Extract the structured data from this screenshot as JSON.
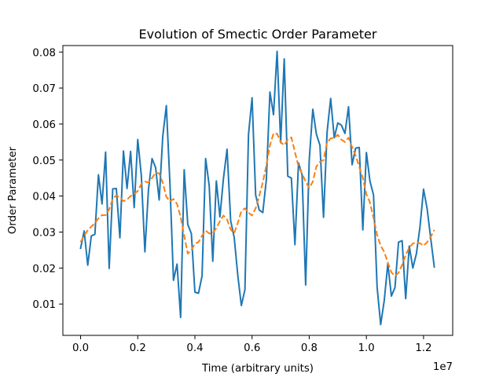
{
  "chart_data": {
    "type": "line",
    "title": "Evolution of Smectic Order Parameter",
    "xlabel": "Time (arbitrary units)",
    "ylabel": "Order Parameter",
    "x_offset_label": "1e7",
    "xlim": [
      -0.062,
      1.302
    ],
    "ylim": [
      0.0013,
      0.0818
    ],
    "xticks": [
      0.0,
      0.2,
      0.4,
      0.6,
      0.8,
      1.0,
      1.2
    ],
    "xtick_labels": [
      "0.0",
      "0.2",
      "0.4",
      "0.6",
      "0.8",
      "1.0",
      "1.2"
    ],
    "yticks": [
      0.01,
      0.02,
      0.03,
      0.04,
      0.05,
      0.06,
      0.07,
      0.08
    ],
    "ytick_labels": [
      "0.01",
      "0.02",
      "0.03",
      "0.04",
      "0.05",
      "0.06",
      "0.07",
      "0.08"
    ],
    "grid": false,
    "legend": "none",
    "series": [
      {
        "style": "solid",
        "color": "#1f77b4",
        "x": [
          0.0,
          0.0125,
          0.025,
          0.0375,
          0.05,
          0.0625,
          0.075,
          0.0875,
          0.1,
          0.1125,
          0.125,
          0.1375,
          0.15,
          0.1625,
          0.175,
          0.1875,
          0.2,
          0.2125,
          0.225,
          0.2375,
          0.25,
          0.2625,
          0.275,
          0.2875,
          0.3,
          0.3125,
          0.325,
          0.3375,
          0.35,
          0.3625,
          0.375,
          0.3875,
          0.4,
          0.4125,
          0.425,
          0.4375,
          0.45,
          0.4625,
          0.475,
          0.4875,
          0.5,
          0.5125,
          0.525,
          0.5375,
          0.55,
          0.5625,
          0.575,
          0.5875,
          0.6,
          0.6125,
          0.625,
          0.6375,
          0.65,
          0.6625,
          0.675,
          0.6875,
          0.7,
          0.7125,
          0.725,
          0.7375,
          0.75,
          0.7625,
          0.775,
          0.7875,
          0.8,
          0.8125,
          0.825,
          0.8375,
          0.85,
          0.8625,
          0.875,
          0.8875,
          0.9,
          0.9125,
          0.925,
          0.9375,
          0.95,
          0.9625,
          0.975,
          0.9875,
          1.0,
          1.0125,
          1.025,
          1.0375,
          1.05,
          1.0625,
          1.075,
          1.0875,
          1.1,
          1.1125,
          1.125,
          1.1375,
          1.15,
          1.1625,
          1.175,
          1.1875,
          1.2,
          1.2125,
          1.225,
          1.2375
        ],
        "y": [
          0.0255,
          0.0303,
          0.0208,
          0.0289,
          0.0294,
          0.0459,
          0.0378,
          0.0522,
          0.0199,
          0.042,
          0.0421,
          0.0284,
          0.0525,
          0.0421,
          0.0524,
          0.0368,
          0.0557,
          0.0457,
          0.0245,
          0.0418,
          0.0504,
          0.0479,
          0.0389,
          0.0566,
          0.0651,
          0.0437,
          0.0166,
          0.0211,
          0.0063,
          0.0473,
          0.0321,
          0.0296,
          0.0133,
          0.013,
          0.0178,
          0.0504,
          0.0429,
          0.0219,
          0.0442,
          0.0342,
          0.045,
          0.053,
          0.0332,
          0.0285,
          0.018,
          0.0096,
          0.014,
          0.0571,
          0.0673,
          0.0403,
          0.0361,
          0.0354,
          0.0446,
          0.0689,
          0.0626,
          0.0802,
          0.0548,
          0.0781,
          0.0455,
          0.045,
          0.0265,
          0.0492,
          0.0459,
          0.0153,
          0.05,
          0.0641,
          0.0572,
          0.0541,
          0.0341,
          0.0578,
          0.0671,
          0.0562,
          0.0603,
          0.0597,
          0.0574,
          0.0648,
          0.0487,
          0.0533,
          0.0535,
          0.0306,
          0.0521,
          0.0441,
          0.0403,
          0.0147,
          0.0043,
          0.011,
          0.0212,
          0.0122,
          0.0146,
          0.0272,
          0.0276,
          0.0115,
          0.0261,
          0.02,
          0.024,
          0.0314,
          0.0419,
          0.0365,
          0.0283,
          0.0203
        ]
      },
      {
        "style": "dashed",
        "color": "#ff7f0e",
        "x": [
          0.0,
          0.0125,
          0.025,
          0.0375,
          0.05,
          0.0625,
          0.075,
          0.0875,
          0.1,
          0.1125,
          0.125,
          0.1375,
          0.15,
          0.1625,
          0.175,
          0.1875,
          0.2,
          0.2125,
          0.225,
          0.2375,
          0.25,
          0.2625,
          0.275,
          0.2875,
          0.3,
          0.3125,
          0.325,
          0.3375,
          0.35,
          0.3625,
          0.375,
          0.3875,
          0.4,
          0.4125,
          0.425,
          0.4375,
          0.45,
          0.4625,
          0.475,
          0.4875,
          0.5,
          0.5125,
          0.525,
          0.5375,
          0.55,
          0.5625,
          0.575,
          0.5875,
          0.6,
          0.6125,
          0.625,
          0.6375,
          0.65,
          0.6625,
          0.675,
          0.6875,
          0.7,
          0.7125,
          0.725,
          0.7375,
          0.75,
          0.7625,
          0.775,
          0.7875,
          0.8,
          0.8125,
          0.825,
          0.8375,
          0.85,
          0.8625,
          0.875,
          0.8875,
          0.9,
          0.9125,
          0.925,
          0.9375,
          0.95,
          0.9625,
          0.975,
          0.9875,
          1.0,
          1.0125,
          1.025,
          1.0375,
          1.05,
          1.0625,
          1.075,
          1.0875,
          1.1,
          1.1125,
          1.125,
          1.1375,
          1.15,
          1.1625,
          1.175,
          1.1875,
          1.2,
          1.2125,
          1.225,
          1.2375
        ],
        "y": [
          0.0272,
          0.029,
          0.0305,
          0.0315,
          0.0325,
          0.0338,
          0.0347,
          0.0347,
          0.0363,
          0.0392,
          0.0402,
          0.0396,
          0.0386,
          0.039,
          0.04,
          0.0406,
          0.0414,
          0.0433,
          0.044,
          0.0438,
          0.045,
          0.0465,
          0.0463,
          0.0437,
          0.0398,
          0.0385,
          0.0392,
          0.0378,
          0.0342,
          0.029,
          0.024,
          0.025,
          0.0268,
          0.0272,
          0.029,
          0.0304,
          0.0296,
          0.0297,
          0.0311,
          0.033,
          0.0346,
          0.0335,
          0.0307,
          0.0297,
          0.0325,
          0.0358,
          0.0366,
          0.0354,
          0.0346,
          0.0366,
          0.04,
          0.0438,
          0.0485,
          0.0541,
          0.0574,
          0.0573,
          0.055,
          0.0541,
          0.0557,
          0.0563,
          0.0522,
          0.0482,
          0.0462,
          0.044,
          0.0422,
          0.044,
          0.0482,
          0.0495,
          0.05,
          0.0549,
          0.056,
          0.0562,
          0.057,
          0.0557,
          0.055,
          0.0562,
          0.0536,
          0.0512,
          0.0481,
          0.045,
          0.0405,
          0.0382,
          0.0339,
          0.0292,
          0.0262,
          0.0245,
          0.0215,
          0.0188,
          0.0178,
          0.0187,
          0.0209,
          0.0236,
          0.0257,
          0.0268,
          0.0272,
          0.0269,
          0.0262,
          0.0272,
          0.0286,
          0.0306
        ]
      }
    ]
  }
}
